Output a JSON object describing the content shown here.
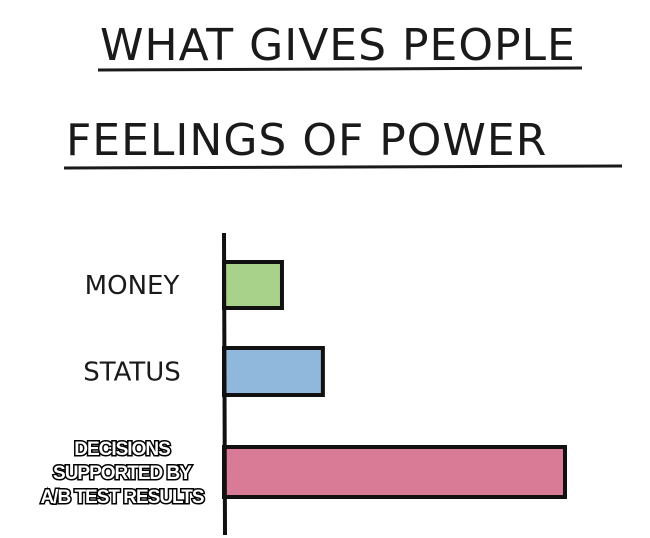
{
  "chart_data": {
    "type": "bar",
    "orientation": "horizontal",
    "title_lines": [
      "WHAT GIVES PEOPLE",
      "FEELINGS OF POWER"
    ],
    "categories": [
      {
        "label_lines": [
          "MONEY"
        ],
        "style": "handwritten"
      },
      {
        "label_lines": [
          "STATUS"
        ],
        "style": "handwritten"
      },
      {
        "label_lines": [
          "DECISIONS",
          "SUPPORTED BY",
          "A/B TEST RESULTS"
        ],
        "style": "meme-impact"
      }
    ],
    "values": [
      17,
      29,
      100
    ],
    "value_scale": "relative, percent of largest bar (no axis ticks printed)",
    "colors": [
      "#a8d28a",
      "#8fb8dc",
      "#d97b96"
    ],
    "xlim": [
      0,
      100
    ],
    "grid": false,
    "legend": "none"
  }
}
